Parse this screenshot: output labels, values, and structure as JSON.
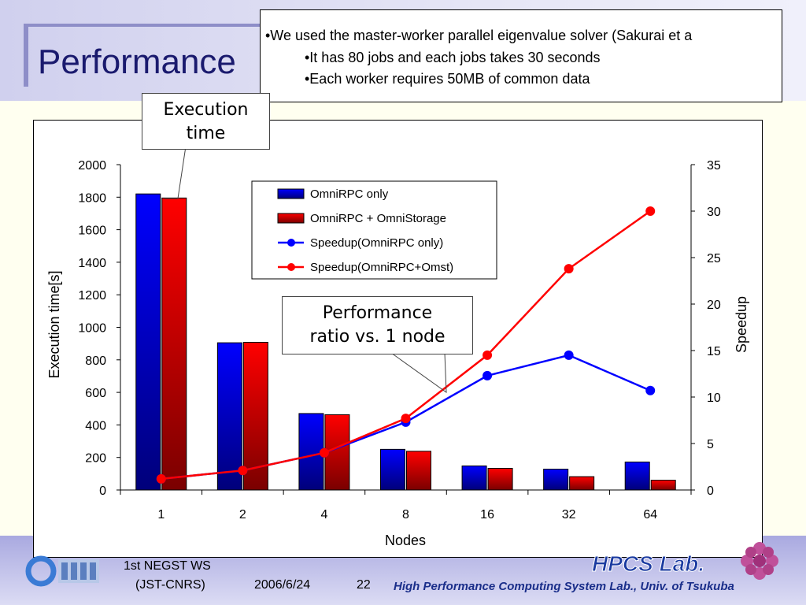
{
  "slide": {
    "title": "Performance",
    "notes": [
      "•We used the master-worker parallel eigenvalue solver (Sakurai et a",
      "•It has 80 jobs and each jobs takes 30 seconds",
      "•Each worker requires 50MB of common data"
    ],
    "callouts": {
      "execution_time": [
        "Execution",
        "time"
      ],
      "performance_ratio": [
        "Performance",
        "ratio vs. 1 node"
      ]
    },
    "footer": {
      "event": "1st NEGST WS",
      "org": "(JST-CNRS)",
      "date": "2006/6/24",
      "page": "22",
      "lab_logo": "HPCS Lab.",
      "lab_name": "High Performance Computing System Lab., Univ. of Tsukuba"
    },
    "colors": {
      "blue": "#0000ff",
      "red": "#ff0000",
      "title": "#1a1a6e",
      "lab": "#1a2e8a"
    }
  },
  "chart_data": {
    "type": "bar",
    "categories": [
      "1",
      "2",
      "4",
      "8",
      "16",
      "32",
      "64"
    ],
    "xlabel": "Nodes",
    "ylabel": "Execution time[s]",
    "y2label": "Speedup",
    "ylim": [
      0,
      2000
    ],
    "y2lim": [
      0,
      35
    ],
    "yticks": [
      0,
      200,
      400,
      600,
      800,
      1000,
      1200,
      1400,
      1600,
      1800,
      2000
    ],
    "y2ticks": [
      0,
      5,
      10,
      15,
      20,
      25,
      30,
      35
    ],
    "legend_position": "top-center",
    "series": [
      {
        "name": "OmniRPC only",
        "kind": "bar",
        "axis": "left",
        "values": [
          1820,
          905,
          470,
          250,
          148,
          128,
          172
        ]
      },
      {
        "name": "OmniRPC + OmniStorage",
        "kind": "bar",
        "axis": "left",
        "values": [
          1795,
          908,
          463,
          238,
          133,
          82,
          60
        ]
      },
      {
        "name": "Speedup(OmniRPC only)",
        "kind": "line",
        "axis": "right",
        "values": [
          1.2,
          2.1,
          4.0,
          7.3,
          12.3,
          14.5,
          10.7
        ]
      },
      {
        "name": "Speedup(OmniRPC+Omst)",
        "kind": "line",
        "axis": "right",
        "values": [
          1.2,
          2.1,
          4.0,
          7.7,
          14.5,
          23.8,
          30.0
        ]
      }
    ]
  }
}
